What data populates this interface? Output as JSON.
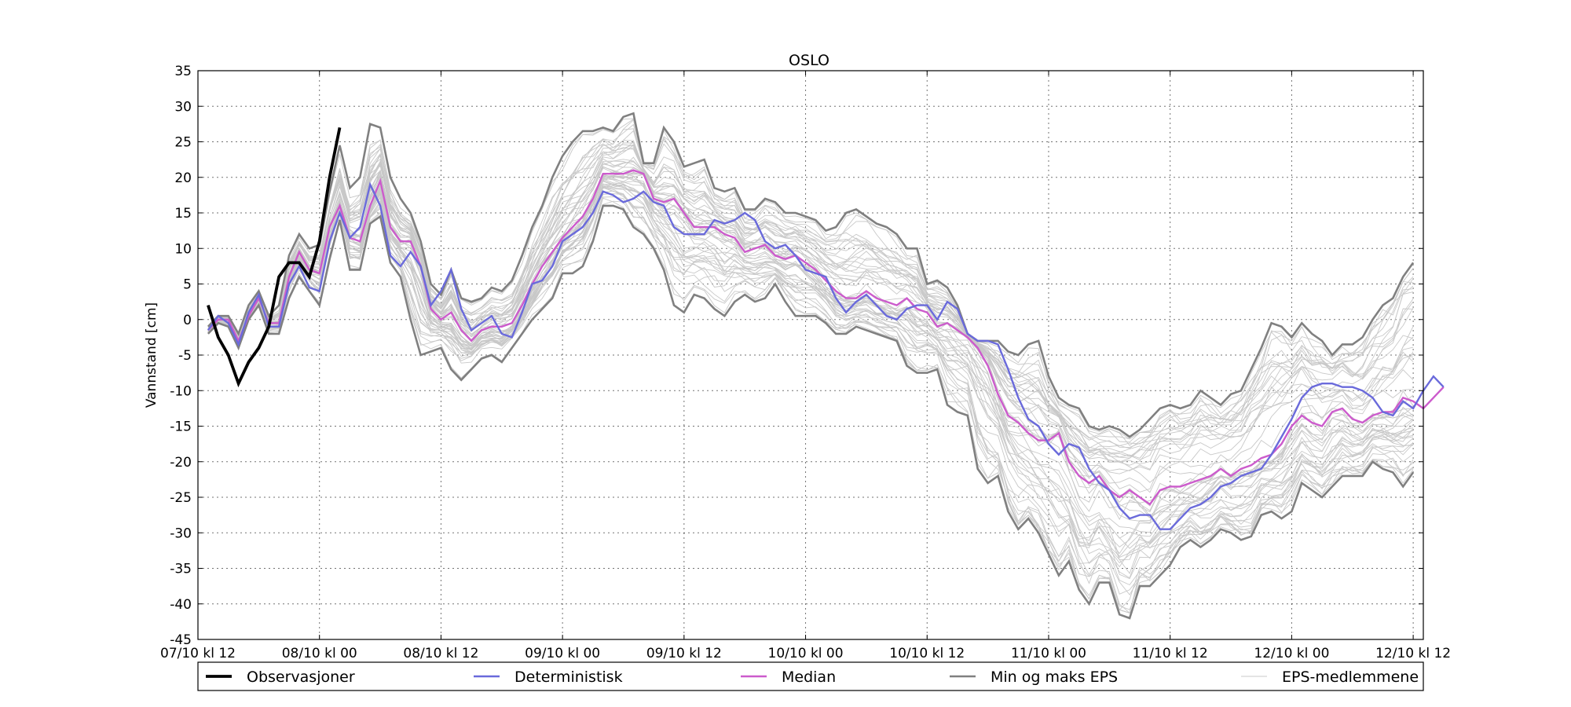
{
  "chart_data": {
    "type": "line",
    "title": "OSLO",
    "xlabel": "",
    "ylabel": "Vannstand [cm]",
    "ylim": [
      -45,
      35
    ],
    "yticks": [
      35,
      30,
      25,
      20,
      15,
      10,
      5,
      0,
      -5,
      -10,
      -15,
      -20,
      -25,
      -30,
      -35,
      -40,
      -45
    ],
    "xlim": [
      0,
      121
    ],
    "xtick_positions": [
      0,
      12,
      24,
      36,
      48,
      60,
      72,
      84,
      96,
      108,
      120
    ],
    "xtick_labels": [
      "07/10 kl 12",
      "08/10 kl 00",
      "08/10 kl 12",
      "09/10 kl 00",
      "09/10 kl 12",
      "10/10 kl 00",
      "10/10 kl 12",
      "11/10 kl 00",
      "11/10 kl 12",
      "12/10 kl 00",
      "12/10 kl 12"
    ],
    "grid": true,
    "legend_position": "below",
    "series": [
      {
        "name": "Observasjoner",
        "color": "#000000",
        "x": [
          1,
          2,
          3,
          4,
          5,
          6,
          7,
          8,
          9,
          10,
          11,
          12,
          13,
          14
        ],
        "values": [
          2,
          -2.5,
          -5,
          -9,
          -6,
          -4,
          -1,
          6,
          8,
          8,
          6,
          11,
          20,
          27
        ]
      },
      {
        "name": "Deterministisk",
        "color": "#6a6adb",
        "x_start": 1,
        "values": [
          -1.5,
          0.5,
          -0.5,
          -3.5,
          1,
          3.5,
          -1,
          -1,
          5,
          7.5,
          4.5,
          4,
          11,
          15,
          11.5,
          13,
          19,
          16,
          9,
          7.5,
          9.5,
          7.5,
          2,
          4,
          7,
          1.5,
          -1.5,
          -0.5,
          0.5,
          -2,
          -2.5,
          1,
          5,
          5.5,
          7.5,
          11,
          12,
          13,
          15,
          18,
          17.5,
          16.5,
          17,
          18,
          16.5,
          16,
          13,
          12,
          12,
          12,
          14,
          13.5,
          14,
          15,
          14,
          11,
          10,
          10.5,
          9,
          7,
          6.5,
          6,
          3,
          1,
          2.5,
          3.5,
          2,
          0.5,
          0,
          1.5,
          2,
          2,
          0,
          2.5,
          1.5,
          -2,
          -3,
          -3,
          -3.5,
          -7,
          -11,
          -14,
          -15,
          -17.5,
          -19,
          -17.5,
          -18,
          -21,
          -23,
          -24,
          -26.5,
          -28,
          -27.5,
          -27.5,
          -29.5,
          -29.5,
          -28,
          -26.5,
          -26,
          -25,
          -23.5,
          -23,
          -22,
          -21.5,
          -21,
          -19,
          -16.5,
          -14,
          -11,
          -9.5,
          -9,
          -9,
          -9.5,
          -9.5,
          -10,
          -11,
          -13,
          -13.5,
          -11.5,
          -12.5,
          -10,
          -8,
          -9.5
        ]
      },
      {
        "name": "Median",
        "color": "#cc5bcc",
        "x_start": 1,
        "values": [
          -1.5,
          0,
          0,
          -3,
          0.5,
          3,
          -0.5,
          -0.5,
          6,
          9.5,
          7,
          6.5,
          13,
          16,
          11.5,
          11,
          16,
          19.5,
          13,
          11,
          11,
          7.5,
          1.5,
          0,
          1,
          -1.5,
          -3,
          -1.5,
          -1,
          -1,
          -0.5,
          2,
          5,
          7.5,
          9.5,
          11.5,
          13,
          14.5,
          17,
          20.5,
          20.5,
          20.5,
          21,
          20.5,
          17,
          16.5,
          17,
          15,
          13,
          13,
          13,
          12,
          11.5,
          9.5,
          10,
          10.5,
          9,
          8.5,
          9,
          8,
          7,
          5.5,
          4,
          3,
          3,
          4,
          3,
          2.5,
          2,
          3,
          1.5,
          1,
          -1,
          -0.5,
          -1.5,
          -2.5,
          -4,
          -6.5,
          -10.5,
          -13.5,
          -14.5,
          -16,
          -17,
          -17,
          -16,
          -20,
          -22,
          -23,
          -22,
          -24,
          -25,
          -24,
          -25,
          -26,
          -24,
          -23.5,
          -23.5,
          -23,
          -22.5,
          -22,
          -21,
          -22,
          -21,
          -20.5,
          -19.5,
          -19,
          -17.5,
          -15,
          -13.5,
          -14.5,
          -15,
          -13,
          -12.5,
          -14,
          -14.5,
          -13.5,
          -13,
          -13,
          -11,
          -11.5,
          -12.5,
          -11,
          -9.5
        ]
      },
      {
        "name": "Min og maks EPS",
        "color": "#808080",
        "x_start": 1,
        "max_values": [
          -1,
          0.5,
          0.5,
          -2,
          2,
          4,
          0.5,
          2,
          9,
          12,
          10,
          10.5,
          18,
          24.5,
          18.5,
          20,
          27.5,
          27,
          20,
          17,
          15,
          11,
          5,
          3.5,
          7,
          3,
          2.5,
          3,
          4.5,
          4,
          5.5,
          9,
          13,
          16,
          20,
          23,
          25,
          26.5,
          26.5,
          27,
          26.5,
          28.5,
          29,
          22,
          22,
          27,
          25,
          21.5,
          22,
          22.5,
          18.5,
          18,
          18.5,
          15.5,
          15.5,
          17,
          16.5,
          15,
          15,
          14.5,
          14,
          12.5,
          13,
          15,
          15.5,
          14.5,
          13.5,
          13,
          12,
          10,
          10,
          5,
          5.5,
          4.5,
          2,
          -2,
          -3,
          -3,
          -3,
          -4.5,
          -5,
          -3.5,
          -3,
          -8,
          -11,
          -12,
          -12.5,
          -15,
          -15.5,
          -15,
          -15.5,
          -16.5,
          -15.5,
          -14,
          -12.5,
          -12,
          -12.5,
          -12,
          -10,
          -11,
          -12,
          -10.5,
          -10,
          -7,
          -4,
          -0.5,
          -1,
          -2.5,
          -0.5,
          -2,
          -3,
          -5,
          -3.5,
          -3.5,
          -2.5,
          0,
          2,
          3,
          6,
          8
        ]
      },
      {
        "name": "EPS-medlemmene",
        "color": "#c8c8c8",
        "x_start": 1,
        "min_values": [
          -2,
          -0.5,
          -1,
          -4,
          0,
          2,
          -2,
          -2,
          3,
          6,
          4,
          2,
          8.5,
          14,
          7,
          7,
          13.5,
          14.5,
          8,
          6,
          0,
          -5,
          -4.5,
          -4,
          -7,
          -8.5,
          -7,
          -5.5,
          -5,
          -6,
          -4,
          -2,
          0,
          1.5,
          3,
          6.5,
          6.5,
          7.5,
          11,
          16,
          16,
          15.5,
          13,
          12,
          10,
          7,
          2,
          1,
          3.5,
          3,
          1.5,
          0.5,
          2.5,
          3.5,
          2.5,
          3,
          5,
          2.5,
          0.5,
          0.5,
          0.5,
          -0.5,
          -2,
          -2,
          -1,
          -1.5,
          -2,
          -2.5,
          -3,
          -6.5,
          -7.5,
          -7.5,
          -7,
          -12,
          -13,
          -13.5,
          -21,
          -23,
          -22,
          -27,
          -29.5,
          -28,
          -30,
          -33,
          -36,
          -34,
          -38,
          -40,
          -37,
          -37,
          -41.5,
          -42,
          -37.5,
          -37.5,
          -36,
          -34.5,
          -32,
          -31,
          -32,
          -31,
          -29.5,
          -30,
          -31,
          -30.5,
          -27.5,
          -27,
          -28,
          -27,
          -23,
          -24,
          -25,
          -23.5,
          -22,
          -22,
          -22,
          -20,
          -21,
          -21.5,
          -23.5,
          -21.5
        ]
      }
    ],
    "legend": [
      "Observasjoner",
      "Deterministisk",
      "Median",
      "Min og maks EPS",
      "EPS-medlemmene"
    ]
  }
}
